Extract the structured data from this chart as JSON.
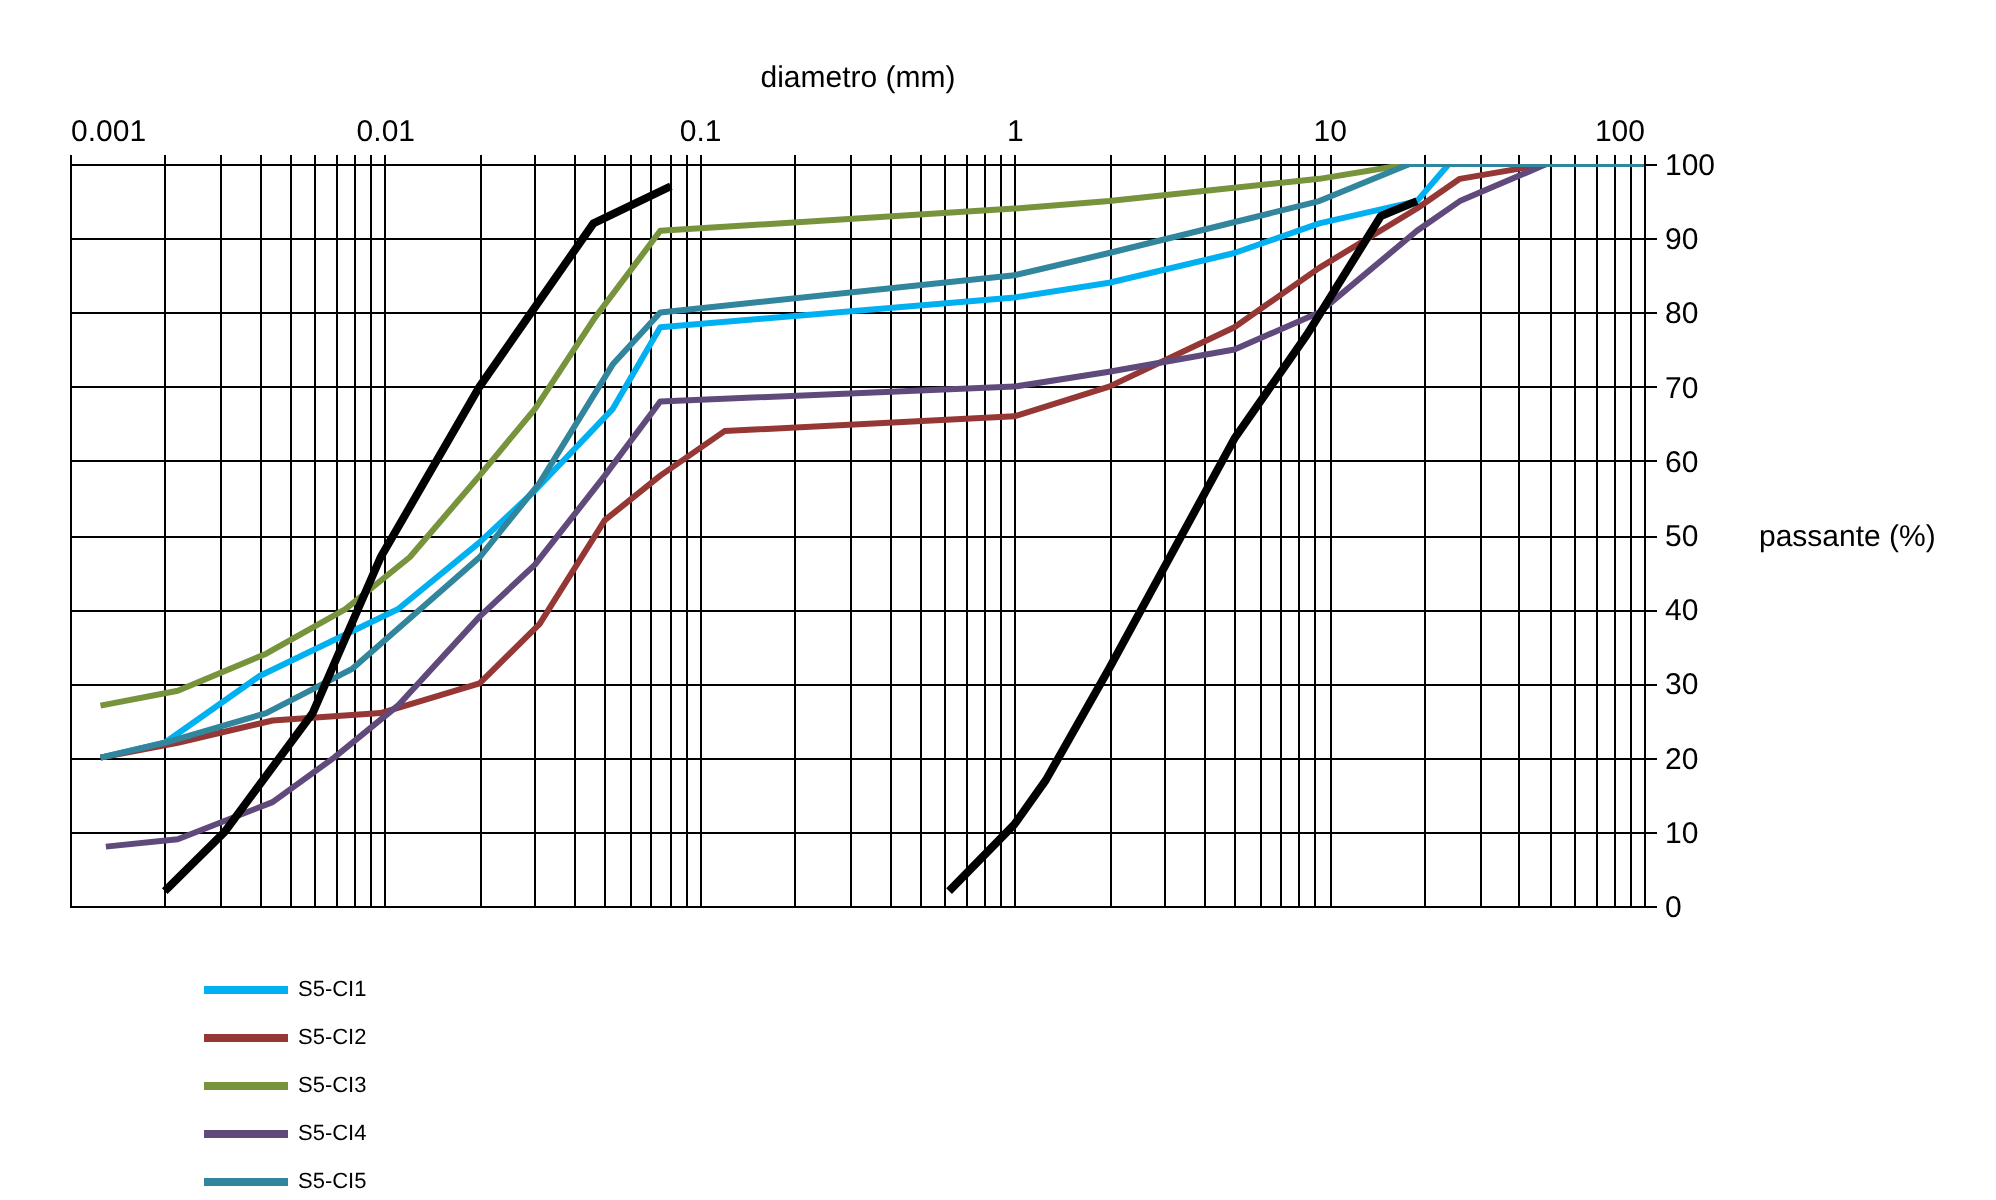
{
  "chart_data": {
    "type": "line",
    "xlabel": "diametro (mm)",
    "ylabel": "passante (%)",
    "log": "x",
    "grid": true,
    "legend": "bottom left",
    "xlim": [
      0.001,
      100
    ],
    "ylim": [
      0,
      100
    ],
    "xticks": [
      0.001,
      {
        "value": 0.002,
        "label": null
      },
      {
        "value": 0.003,
        "label": null
      },
      {
        "value": 0.004,
        "label": null
      },
      {
        "value": 0.005,
        "label": null
      },
      {
        "value": 0.006,
        "label": null
      },
      {
        "value": 0.007,
        "label": null
      },
      {
        "value": 0.008,
        "label": null
      },
      {
        "value": 0.009,
        "label": null
      },
      0.01,
      {
        "value": 0.02,
        "label": null
      },
      {
        "value": 0.03,
        "label": null
      },
      {
        "value": 0.04,
        "label": null
      },
      {
        "value": 0.05,
        "label": null
      },
      {
        "value": 0.06,
        "label": null
      },
      {
        "value": 0.07,
        "label": null
      },
      {
        "value": 0.08,
        "label": null
      },
      {
        "value": 0.09,
        "label": null
      },
      0.1,
      {
        "value": 0.2,
        "label": null
      },
      {
        "value": 0.3,
        "label": null
      },
      {
        "value": 0.4,
        "label": null
      },
      {
        "value": 0.5,
        "label": null
      },
      {
        "value": 0.6,
        "label": null
      },
      {
        "value": 0.7,
        "label": null
      },
      {
        "value": 0.8,
        "label": null
      },
      {
        "value": 0.9,
        "label": null
      },
      1,
      {
        "value": 2,
        "label": null
      },
      {
        "value": 3,
        "label": null
      },
      {
        "value": 4,
        "label": null
      },
      {
        "value": 5,
        "label": null
      },
      {
        "value": 6,
        "label": null
      },
      {
        "value": 7,
        "label": null
      },
      {
        "value": 8,
        "label": null
      },
      {
        "value": 9,
        "label": null
      },
      10,
      {
        "value": 20,
        "label": null
      },
      {
        "value": 30,
        "label": null
      },
      {
        "value": 40,
        "label": null
      },
      {
        "value": 50,
        "label": null
      },
      {
        "value": 60,
        "label": null
      },
      {
        "value": 70,
        "label": null
      },
      {
        "value": 80,
        "label": null
      },
      {
        "value": 90,
        "label": null
      },
      100
    ],
    "yticks": [
      0,
      10,
      20,
      30,
      40,
      50,
      60,
      70,
      80,
      90,
      100
    ],
    "series": [
      {
        "name": "S5-CI1",
        "color": "#00b0f0",
        "x": [
          0.00125,
          0.002,
          0.004,
          0.011,
          0.02,
          0.03,
          0.053,
          0.075,
          1,
          2,
          5,
          9.3,
          19,
          24,
          100
        ],
        "values": [
          20,
          22,
          31,
          40,
          49,
          56,
          67,
          78,
          82,
          84,
          88,
          92,
          95,
          100,
          100
        ]
      },
      {
        "name": "S5-CI2",
        "color": "#953735",
        "x": [
          0.00125,
          0.0022,
          0.0044,
          0.0097,
          0.02,
          0.031,
          0.05,
          0.075,
          0.12,
          1,
          2,
          5,
          9.3,
          19,
          26,
          49,
          100
        ],
        "values": [
          20,
          22,
          25,
          26,
          30,
          38,
          52,
          58,
          64,
          66,
          70,
          78,
          86,
          94,
          98,
          100,
          100
        ]
      },
      {
        "name": "S5-CI3",
        "color": "#77933c",
        "x": [
          0.00125,
          0.0022,
          0.0042,
          0.0075,
          0.012,
          0.02,
          0.03,
          0.046,
          0.075,
          1,
          2,
          9.3,
          18,
          100
        ],
        "values": [
          27,
          29,
          34,
          40,
          47,
          58,
          67,
          79,
          91,
          94,
          95,
          98,
          100,
          100
        ]
      },
      {
        "name": "S5-CI4",
        "color": "#604a7b",
        "x": [
          0.0013,
          0.0022,
          0.0044,
          0.0069,
          0.011,
          0.02,
          0.03,
          0.05,
          0.075,
          1,
          2,
          5,
          9.3,
          19,
          26,
          49,
          100
        ],
        "values": [
          8,
          9,
          14,
          20,
          27,
          39,
          46,
          58,
          68,
          70,
          72,
          75,
          80,
          91,
          95,
          100,
          100
        ]
      },
      {
        "name": "S5-CI5",
        "color": "#31859c",
        "x": [
          0.00125,
          0.002,
          0.0042,
          0.0079,
          0.02,
          0.031,
          0.053,
          0.075,
          1,
          2,
          9.3,
          18,
          100
        ],
        "values": [
          20,
          22,
          26,
          32,
          47,
          57,
          73,
          80,
          85,
          88,
          95,
          100,
          100
        ]
      },
      {
        "color": "#000000",
        "x": [
          0.002,
          0.0031,
          0.0059,
          0.0097,
          0.02,
          0.046,
          0.081
        ],
        "values": [
          2,
          10,
          26,
          47,
          70,
          92,
          97
        ]
      },
      {
        "color": "#000000",
        "x": [
          0.62,
          1,
          1.26,
          2,
          5,
          8.5,
          14.6,
          19
        ],
        "values": [
          2,
          11,
          17,
          32,
          63,
          77,
          93,
          95
        ]
      }
    ]
  }
}
